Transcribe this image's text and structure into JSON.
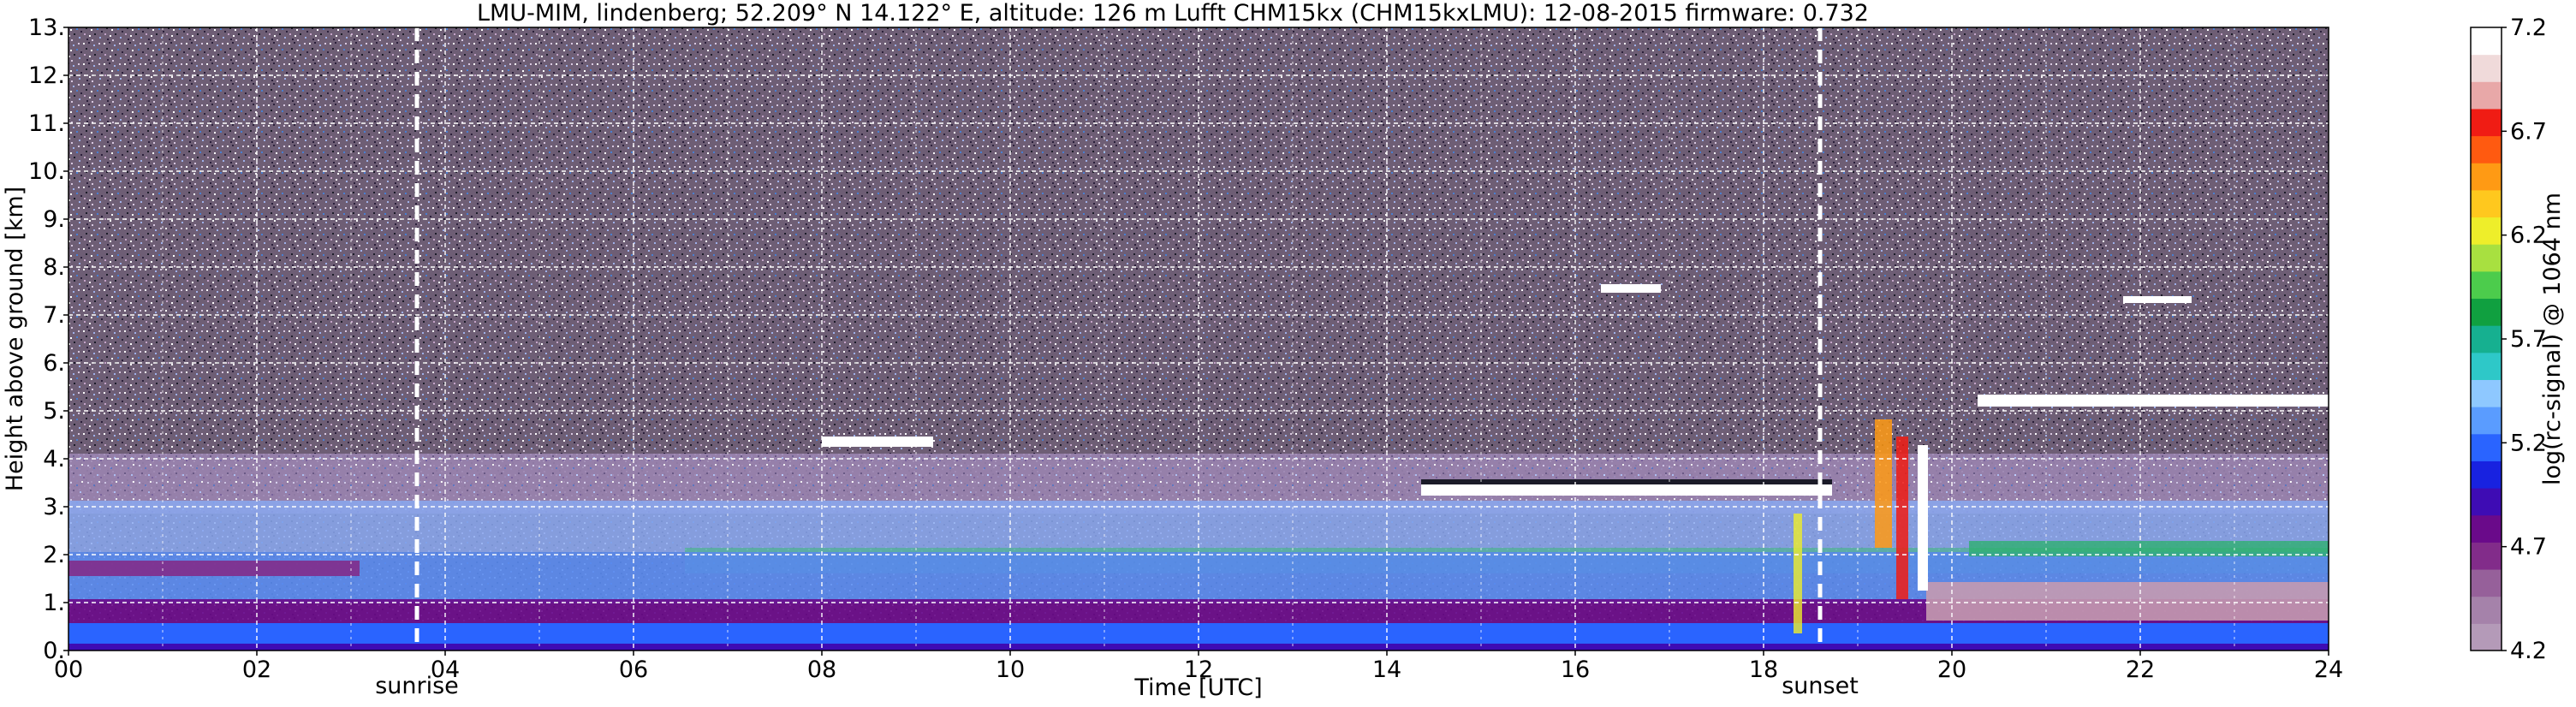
{
  "chart_data": {
    "type": "heatmap",
    "title": "LMU-MIM, lindenberg; 52.209° N 14.122° E, altitude: 126 m    Lufft CHM15kx (CHM15kxLMU): 12-08-2015    firmware: 0.732",
    "xlabel": "Time [UTC]",
    "ylabel": "Height above ground [km]",
    "xlim": [
      0,
      24
    ],
    "ylim": [
      0,
      13
    ],
    "x_ticks": [
      "00",
      "02",
      "04",
      "06",
      "08",
      "10",
      "12",
      "14",
      "16",
      "18",
      "20",
      "22",
      "24"
    ],
    "y_ticks": [
      "0.",
      "1.",
      "2.",
      "3.",
      "4.",
      "5.",
      "6.",
      "7.",
      "8.",
      "9.",
      "10.",
      "11.",
      "12.",
      "13."
    ],
    "grid": true,
    "colorbar": {
      "label": "log(rc-signal) @ 1064 nm",
      "range": [
        4.2,
        7.2
      ],
      "ticks": [
        "4.2",
        "4.7",
        "5.2",
        "5.7",
        "6.2",
        "6.7",
        "7.2"
      ],
      "colors": [
        "#b49ab8",
        "#a582aa",
        "#96609a",
        "#822c8a",
        "#6a0a8a",
        "#3e0cb4",
        "#1822e0",
        "#2a64ff",
        "#5a9cff",
        "#8ec8ff",
        "#2ec8c8",
        "#16b090",
        "#10a040",
        "#4ccc4c",
        "#a8e040",
        "#eeee2a",
        "#ffc81e",
        "#ff9a14",
        "#ff5a10",
        "#f01c14",
        "#e8a8a8",
        "#f0dada",
        "#ffffff"
      ]
    },
    "annotations": [
      {
        "label": "sunrise",
        "x": 3.7
      },
      {
        "label": "sunset",
        "x": 18.6
      }
    ]
  }
}
